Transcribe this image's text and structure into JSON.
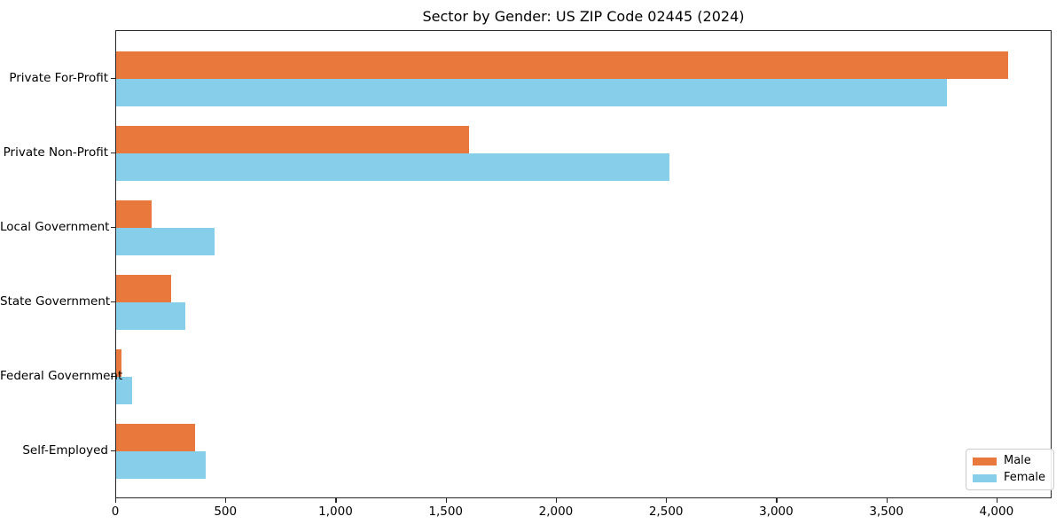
{
  "chart_data": {
    "type": "bar",
    "orientation": "horizontal",
    "title": "Sector by Gender: US ZIP Code 02445 (2024)",
    "categories": [
      "Private For-Profit",
      "Private Non-Profit",
      "Local Government",
      "State Government",
      "Federal Government",
      "Self-Employed"
    ],
    "series": [
      {
        "name": "Male",
        "color": "#e8783c",
        "values": [
          4050,
          1600,
          160,
          250,
          25,
          358
        ]
      },
      {
        "name": "Female",
        "color": "#87ceeb",
        "values": [
          3770,
          2510,
          445,
          312,
          73,
          408
        ]
      }
    ],
    "xlabel": "",
    "ylabel": "",
    "xlim": [
      0,
      4250
    ],
    "xticks": [
      0,
      500,
      1000,
      1500,
      2000,
      2500,
      3000,
      3500,
      4000
    ],
    "xtick_labels": [
      "0",
      "500",
      "1,000",
      "1,500",
      "2,000",
      "2,500",
      "3,000",
      "3,500",
      "4,000"
    ],
    "grid": false,
    "legend_position": "lower right"
  },
  "legend": {
    "items": [
      {
        "label": "Male",
        "color": "#e8783c"
      },
      {
        "label": "Female",
        "color": "#87ceeb"
      }
    ]
  }
}
